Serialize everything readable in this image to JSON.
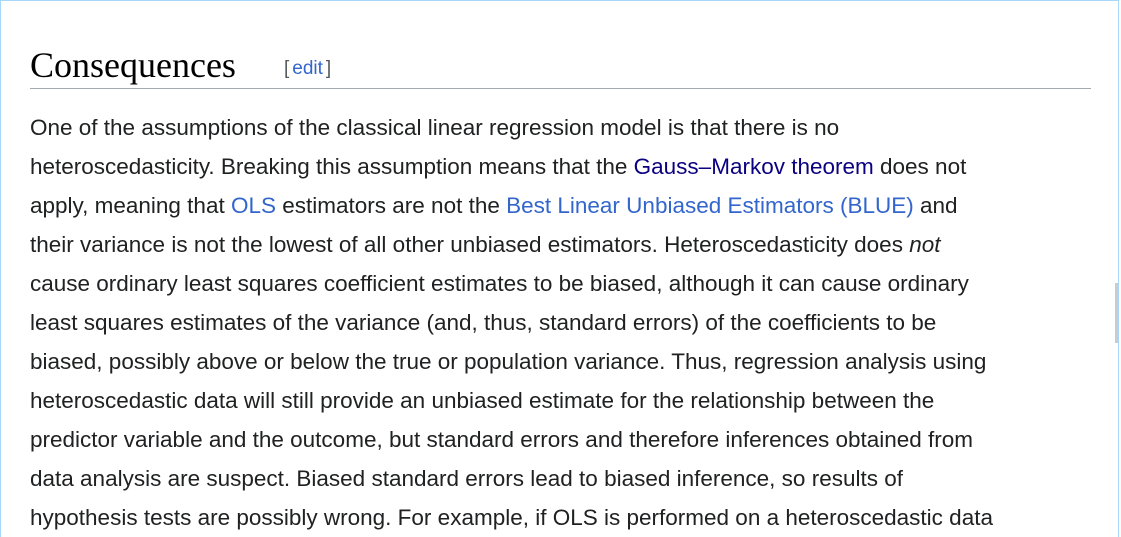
{
  "section": {
    "title": "Consequences",
    "edit_open": "[",
    "edit_label": "edit",
    "edit_close": "]"
  },
  "paragraph": {
    "lines": [
      [
        {
          "text": "One of the assumptions of the classical linear regression model is that there is no"
        }
      ],
      [
        {
          "text": "heteroscedasticity. Breaking this assumption means that the "
        },
        {
          "text": "Gauss–Markov theorem",
          "link": true,
          "visited": true
        },
        {
          "text": " does not"
        }
      ],
      [
        {
          "text": "apply, meaning that "
        },
        {
          "text": "OLS",
          "link": true
        },
        {
          "text": " estimators are not the "
        },
        {
          "text": "Best Linear Unbiased Estimators (BLUE)",
          "link": true
        },
        {
          "text": " and"
        }
      ],
      [
        {
          "text": "their variance is not the lowest of all other unbiased estimators. Heteroscedasticity does "
        },
        {
          "text": "not",
          "italic": true
        }
      ],
      [
        {
          "text": "cause ordinary least squares coefficient estimates to be biased, although it can cause ordinary"
        }
      ],
      [
        {
          "text": "least squares estimates of the variance (and, thus, standard errors) of the coefficients to be"
        }
      ],
      [
        {
          "text": "biased, possibly above or below the true or population variance. Thus, regression analysis using"
        }
      ],
      [
        {
          "text": "heteroscedastic data will still provide an unbiased estimate for the relationship between the"
        }
      ],
      [
        {
          "text": "predictor variable and the outcome, but standard errors and therefore inferences obtained from"
        }
      ],
      [
        {
          "text": "data analysis are suspect. Biased standard errors lead to biased inference, so results of"
        }
      ],
      [
        {
          "text": "hypothesis tests are possibly wrong. For example, if OLS is performed on a heteroscedastic data"
        }
      ]
    ]
  },
  "colors": {
    "link": "#3366cc",
    "visited_link": "#0b0080",
    "text": "#202122",
    "heading_rule": "#a2a9b1"
  }
}
